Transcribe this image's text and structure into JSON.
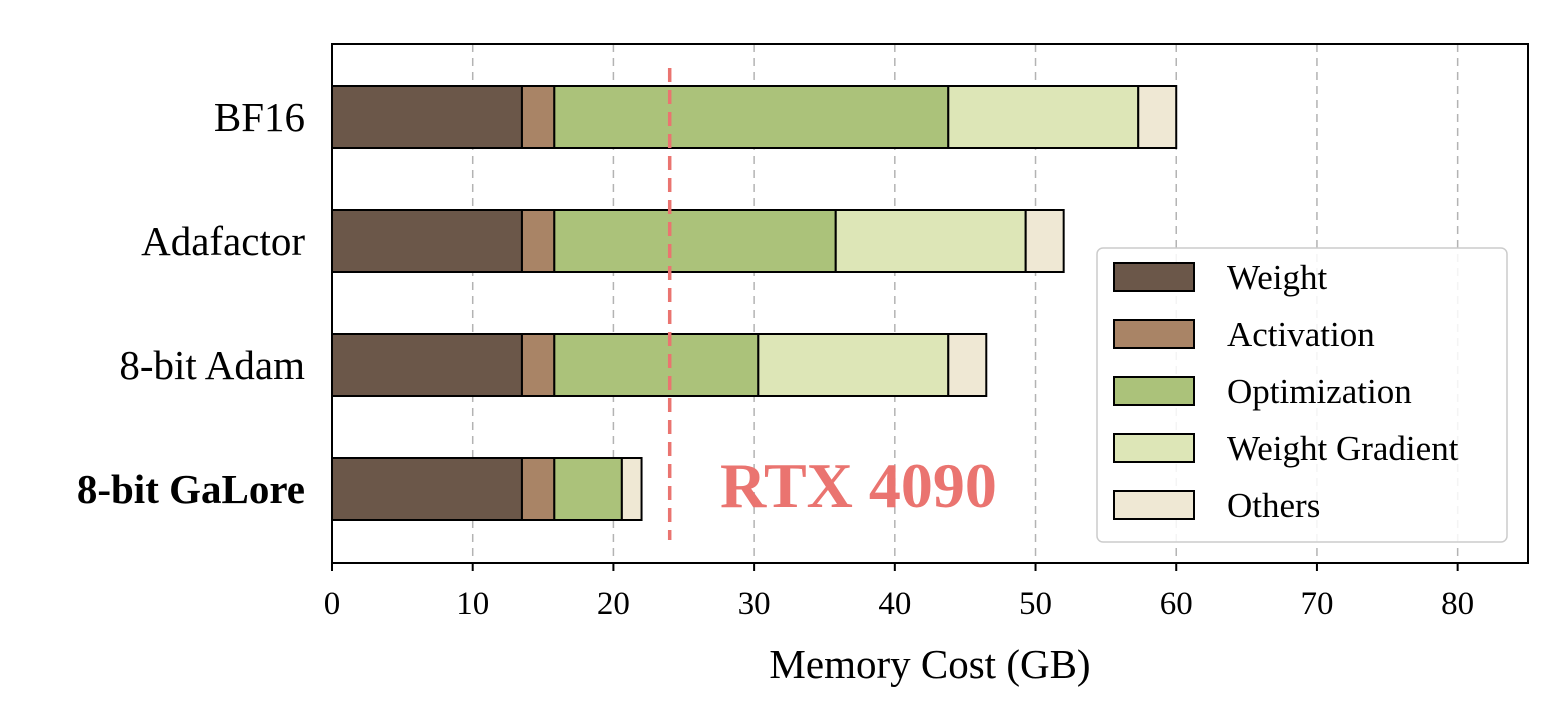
{
  "chart_data": {
    "type": "bar",
    "orientation": "horizontal",
    "stacked": true,
    "title": "",
    "xlabel": "Memory Cost (GB)",
    "ylabel": "",
    "xlim": [
      0,
      85
    ],
    "xticks": [
      0,
      10,
      20,
      30,
      40,
      50,
      60,
      70,
      80
    ],
    "grid": "vertical dashed",
    "categories": [
      "BF16",
      "Adafactor",
      "8-bit Adam",
      "8-bit GaLore"
    ],
    "highlighted_category": "8-bit GaLore",
    "series": [
      {
        "name": "Weight",
        "color": "#6b5749",
        "values": [
          13.5,
          13.5,
          13.5,
          13.5
        ]
      },
      {
        "name": "Activation",
        "color": "#a98466",
        "values": [
          2.3,
          2.3,
          2.3,
          2.3
        ]
      },
      {
        "name": "Optimization",
        "color": "#abc27a",
        "values": [
          28.0,
          20.0,
          14.5,
          4.8
        ]
      },
      {
        "name": "Weight Gradient",
        "color": "#dde6b7",
        "values": [
          13.5,
          13.5,
          13.5,
          0.0
        ]
      },
      {
        "name": "Others",
        "color": "#efe8d4",
        "values": [
          2.7,
          2.7,
          2.7,
          1.4
        ]
      }
    ],
    "reference_line": {
      "value": 24,
      "label": "RTX 4090",
      "color": "#ea7470"
    },
    "legend": "lower-right"
  }
}
